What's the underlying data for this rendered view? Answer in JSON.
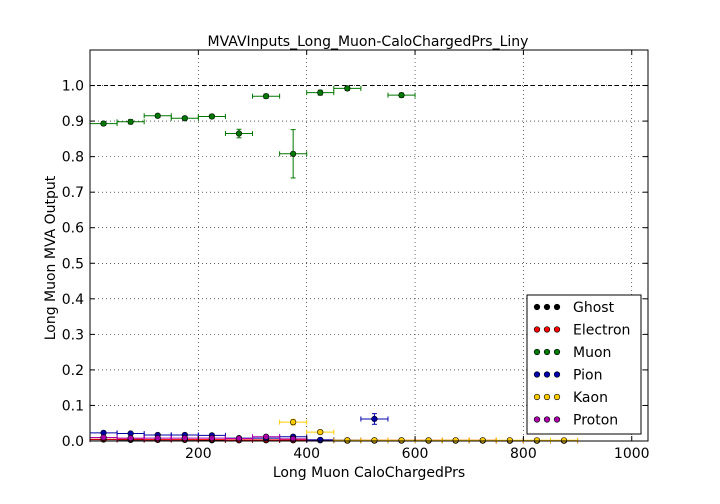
{
  "chart_data": {
    "type": "scatter",
    "title": "MVAVInputs_Long_Muon-CaloChargedPrs_Liny",
    "xlabel": "Long Muon CaloChargedPrs",
    "ylabel": "Long Muon MVA Output",
    "xlim": [
      0,
      1030
    ],
    "ylim": [
      0,
      1.1
    ],
    "xticks": [
      "200",
      "400",
      "600",
      "800",
      "1000"
    ],
    "yticks": [
      "0.0",
      "0.1",
      "0.2",
      "0.3",
      "0.4",
      "0.5",
      "0.6",
      "0.7",
      "0.8",
      "0.9",
      "1.0"
    ],
    "xtick_values": [
      200,
      400,
      600,
      800,
      1000
    ],
    "ytick_values": [
      0.0,
      0.1,
      0.2,
      0.3,
      0.4,
      0.5,
      0.6,
      0.7,
      0.8,
      0.9,
      1.0
    ],
    "grid": true,
    "reference_line": 1.0,
    "legend_position": "lower-right",
    "series": [
      {
        "name": "Ghost",
        "color": "#000000",
        "x": [
          25,
          75,
          125,
          175,
          225,
          275,
          325,
          375,
          425,
          475,
          525,
          575,
          625,
          675,
          725,
          775,
          825,
          875
        ],
        "y": [
          0.004,
          0.003,
          0.003,
          0.003,
          0.002,
          0.002,
          0.002,
          0.002,
          0.002,
          0.001,
          0.001,
          0.001,
          0.001,
          0.001,
          0.001,
          0.001,
          0.001,
          0.001
        ],
        "xerr": 25,
        "yerr": [
          0,
          0,
          0,
          0,
          0,
          0,
          0,
          0,
          0,
          0,
          0,
          0,
          0,
          0,
          0,
          0,
          0,
          0
        ]
      },
      {
        "name": "Electron",
        "color": "#ff0000",
        "x": [
          25,
          75,
          125,
          175,
          225,
          275,
          325,
          375,
          425,
          475,
          525,
          575,
          625,
          675,
          725,
          775,
          825,
          875
        ],
        "y": [
          0.005,
          0.005,
          0.004,
          0.004,
          0.004,
          0.003,
          0.003,
          0.003,
          0.003,
          0.002,
          0.002,
          0.002,
          0.002,
          0.002,
          0.002,
          0.001,
          0.001,
          0.001
        ],
        "xerr": 25,
        "yerr": [
          0,
          0,
          0,
          0,
          0,
          0,
          0,
          0,
          0,
          0,
          0,
          0,
          0,
          0,
          0,
          0,
          0,
          0
        ]
      },
      {
        "name": "Muon",
        "color": "#007700",
        "x": [
          25,
          75,
          125,
          175,
          225,
          275,
          325,
          375,
          425,
          475,
          575
        ],
        "y": [
          0.893,
          0.898,
          0.915,
          0.908,
          0.913,
          0.865,
          0.97,
          0.808,
          0.98,
          0.992,
          0.973
        ],
        "xerr": 25,
        "yerr": [
          0.005,
          0.006,
          0.005,
          0.005,
          0.006,
          0.012,
          0.006,
          0.068,
          0.007,
          0.006,
          0.006
        ]
      },
      {
        "name": "Pion",
        "color": "#0000aa",
        "x": [
          25,
          75,
          125,
          175,
          225,
          275,
          325,
          375,
          425,
          475,
          525
        ],
        "y": [
          0.023,
          0.021,
          0.017,
          0.017,
          0.016,
          0.008,
          0.008,
          0.012,
          0.003,
          0.002,
          0.062
        ],
        "xerr": 25,
        "yerr": [
          0,
          0,
          0,
          0,
          0,
          0,
          0,
          0,
          0,
          0,
          0.015
        ]
      },
      {
        "name": "Kaon",
        "color": "#ffcc00",
        "x": [
          375,
          425,
          475,
          525,
          575,
          625,
          675,
          725,
          775,
          825,
          875
        ],
        "y": [
          0.053,
          0.025,
          0.002,
          0.002,
          0.002,
          0.002,
          0.002,
          0.002,
          0.002,
          0.002,
          0.002
        ],
        "xerr": 25,
        "yerr": [
          0.008,
          0.006,
          0,
          0,
          0,
          0,
          0,
          0,
          0,
          0,
          0
        ]
      },
      {
        "name": "Proton",
        "color": "#aa00aa",
        "x": [
          25,
          75,
          125,
          175,
          225,
          275,
          325,
          375
        ],
        "y": [
          0.01,
          0.008,
          0.008,
          0.008,
          0.008,
          0.007,
          0.012,
          0.006
        ],
        "xerr": 25,
        "yerr": [
          0,
          0,
          0,
          0,
          0,
          0,
          0,
          0
        ]
      }
    ]
  }
}
